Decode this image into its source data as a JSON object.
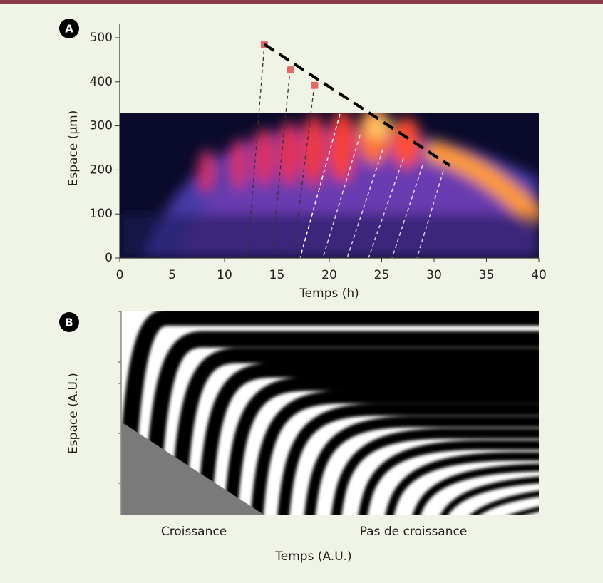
{
  "chart_data": [
    {
      "type": "scatter",
      "panel": "A",
      "xlabel": "Temps (h)",
      "ylabel": "Espace (µm)",
      "xlim": [
        0,
        40
      ],
      "ylim": [
        0,
        500
      ],
      "xticks": [
        0,
        5,
        10,
        15,
        20,
        25,
        30,
        35,
        40
      ],
      "yticks": [
        0,
        100,
        200,
        300,
        400,
        500
      ],
      "series": [
        {
          "mode": "markers",
          "color": "#e06a6a",
          "x": [
            13.8,
            16.3,
            18.6
          ],
          "y": [
            485,
            427,
            392
          ]
        },
        {
          "mode": "dashed-line",
          "color": "#000000",
          "x": [
            13.8,
            31.5
          ],
          "y": [
            485,
            210
          ]
        }
      ]
    },
    {
      "type": "pattern",
      "panel": "B",
      "xlabel": "Temps (A.U.)",
      "ylabel": "Espace (A.U.)",
      "annotations": [
        "Croissance",
        "Pas de croissance"
      ]
    }
  ]
}
